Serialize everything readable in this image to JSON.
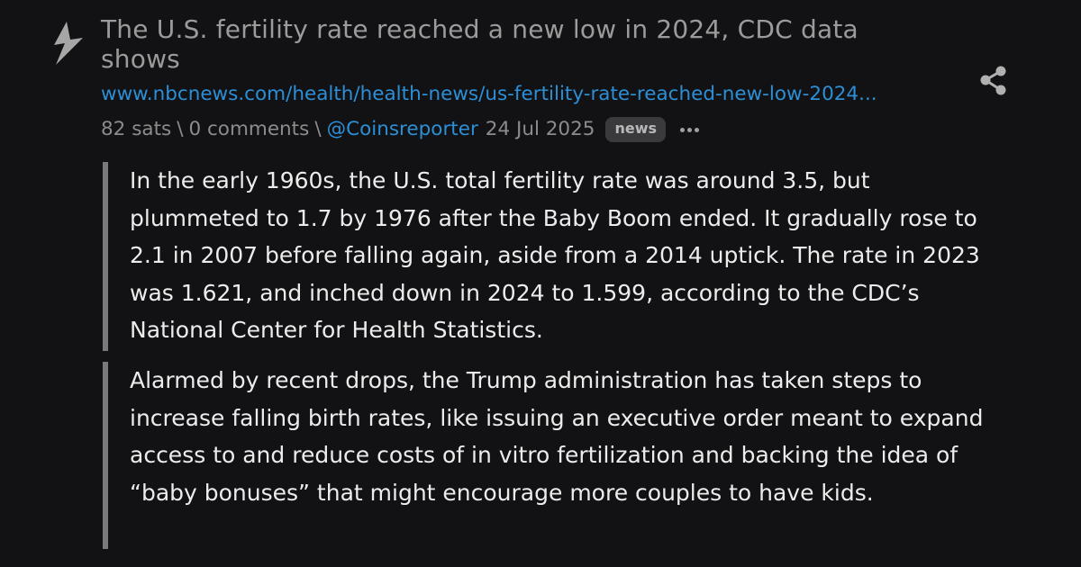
{
  "post": {
    "title": "The U.S. fertility rate reached a new low in 2024, CDC data shows",
    "url": "www.nbcnews.com/health/health-news/us-fertility-rate-reached-new-low-2024...",
    "meta": {
      "sats": "82 sats",
      "separator": "\\",
      "comments": "0 comments",
      "user": "@Coinsreporter",
      "date": "24 Jul 2025",
      "badge": "news"
    },
    "quotes": [
      "In the early 1960s, the U.S. total fertility rate was around 3.5, but plummeted to 1.7 by 1976 after the Baby Boom ended. It gradually rose to 2.1 in 2007 before falling again, aside from a 2014 uptick. The rate in 2023 was 1.621, and inched down in 2024 to 1.599, according to the CDC’s National Center for Health Statistics.",
      "Alarmed by recent drops, the Trump administration has taken steps to increase falling birth rates, like issuing an executive order meant to expand access to and reduce costs of in vitro fertilization and backing the idea of “baby bonuses” that might encourage more couples to have kids."
    ]
  },
  "icons": {
    "zap": "zap-icon",
    "share": "share-icon",
    "more": "more-options-icon"
  },
  "colors": {
    "background": "#121214",
    "title": "#9b9b9b",
    "link": "#2c8fd6",
    "meta": "#8c8c8c",
    "body_text": "#ececec",
    "quote_border": "#7a7a7a",
    "badge_bg": "#3a3a3c"
  }
}
